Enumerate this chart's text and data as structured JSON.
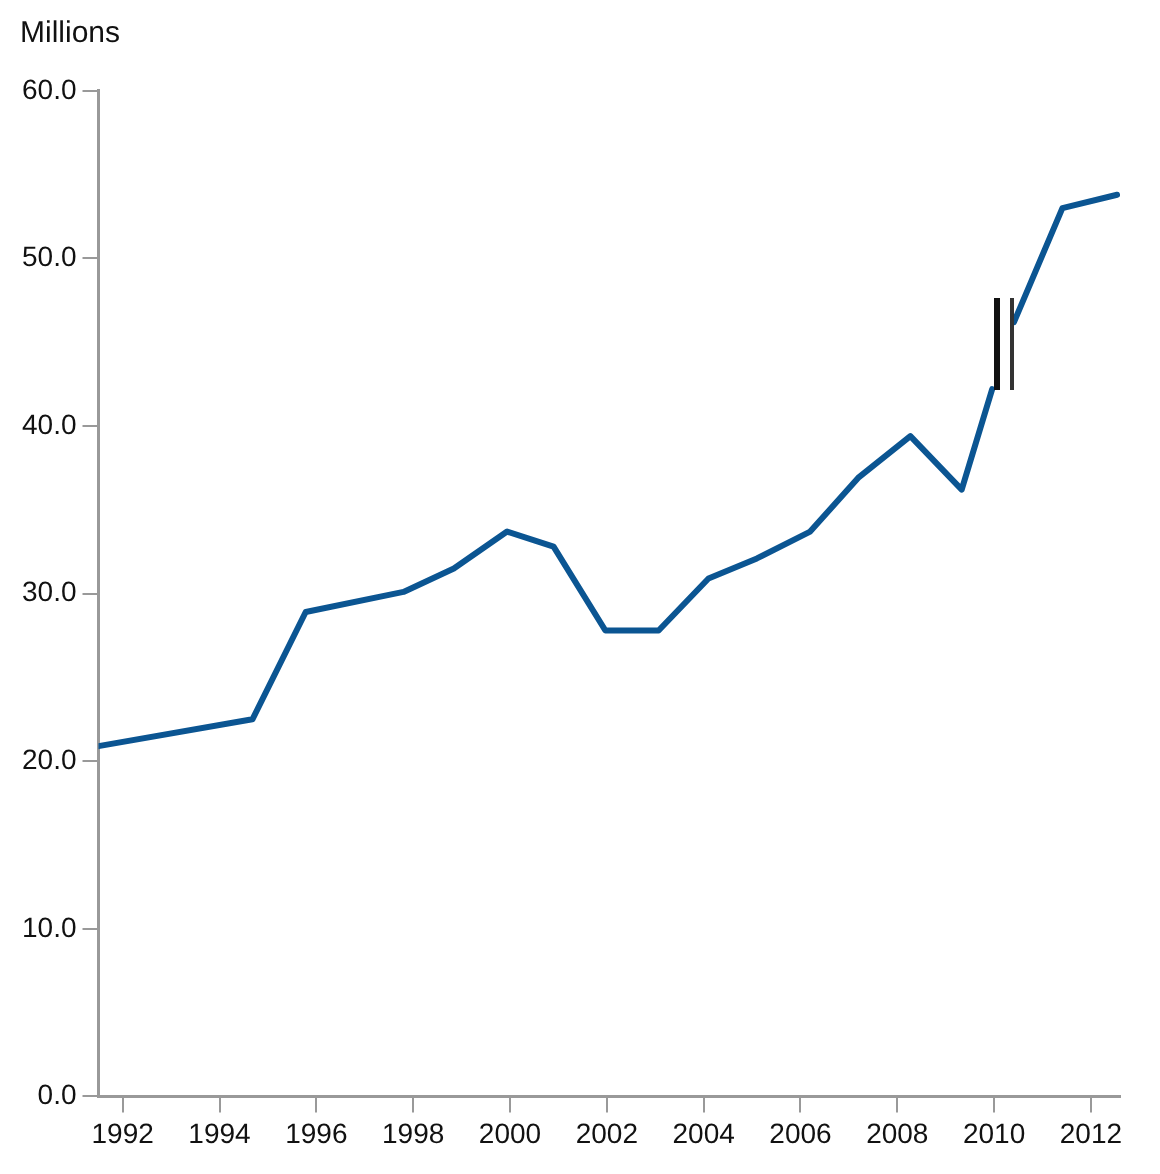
{
  "chart_data": {
    "type": "line",
    "ylabel": "Millions",
    "series": [
      {
        "color": "#0b5592",
        "x": [
          1991.5,
          1994.68,
          1995.78,
          1997.8,
          1998.84,
          1999.94,
          2000.9,
          2001.97,
          2003.07,
          2004.1,
          2005.1,
          2006.2,
          2007.19,
          2008.27,
          2009.33,
          2009.96
        ],
        "values": [
          20.9,
          22.5,
          28.9,
          30.1,
          31.5,
          33.7,
          32.8,
          27.8,
          27.8,
          30.9,
          32.1,
          33.7,
          36.9,
          39.4,
          36.2,
          42.2
        ]
      },
      {
        "color": "#0b5592",
        "x": [
          2010.41,
          2011.41,
          2012.54
        ],
        "values": [
          46.2,
          53.0,
          53.8
        ]
      }
    ],
    "xlim": [
      1991.5,
      2012.6
    ],
    "xticks": [
      1992,
      1994,
      1996,
      1998,
      2000,
      2002,
      2004,
      2006,
      2008,
      2010,
      2012
    ],
    "ylim": [
      0,
      60
    ],
    "yticks": [
      {
        "value": 0,
        "label": "0.0"
      },
      {
        "value": 10,
        "label": "10.0"
      },
      {
        "value": 20,
        "label": "20.0"
      },
      {
        "value": 30,
        "label": "30.0"
      },
      {
        "value": 40,
        "label": "40.0"
      },
      {
        "value": 50,
        "label": "50.0"
      },
      {
        "value": 60,
        "label": "60.0"
      }
    ],
    "grid": false,
    "legend": false,
    "marker": "none",
    "line_style": "solid"
  }
}
